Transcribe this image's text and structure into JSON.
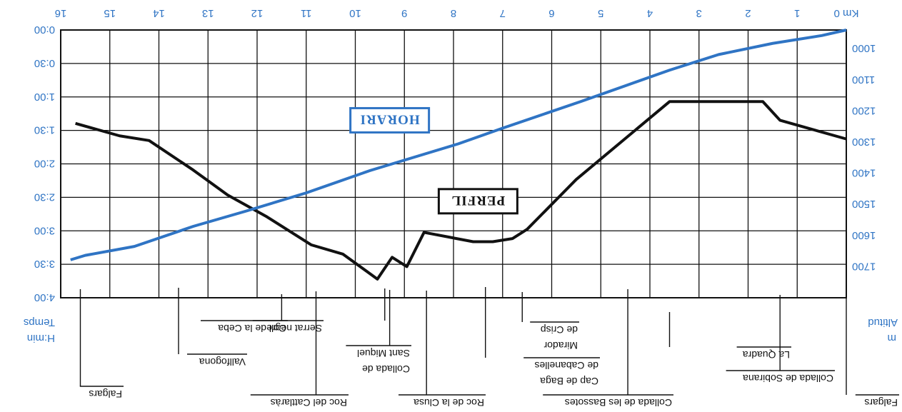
{
  "chart_data": {
    "type": "line",
    "x_label": "Km",
    "x_ticks": [
      0,
      1,
      2,
      3,
      4,
      5,
      6,
      7,
      8,
      9,
      10,
      11,
      12,
      13,
      14,
      15,
      16
    ],
    "xlim": [
      0,
      16
    ],
    "y_left": {
      "label": "Altitud",
      "unit": "m",
      "ticks": [
        1000,
        1100,
        1200,
        1300,
        1400,
        1500,
        1600,
        1700
      ],
      "lim": [
        940,
        1800
      ]
    },
    "y_right": {
      "label": "Temps",
      "unit": "H:min",
      "ticks": [
        "0:00",
        "0:30",
        "1:00",
        "1:30",
        "2:00",
        "2:30",
        "3:00",
        "3:30",
        "4:00"
      ],
      "lim_minutes": [
        0,
        240
      ]
    },
    "grid": true,
    "series": [
      {
        "name": "PERFIL",
        "axis": "altitude",
        "color": "#111111",
        "points": [
          [
            0,
            1290
          ],
          [
            1.35,
            1230
          ],
          [
            1.7,
            1170
          ],
          [
            3.2,
            1170
          ],
          [
            3.6,
            1170
          ],
          [
            5.5,
            1420
          ],
          [
            6.5,
            1580
          ],
          [
            6.8,
            1610
          ],
          [
            7.2,
            1620
          ],
          [
            7.6,
            1620
          ],
          [
            8.6,
            1590
          ],
          [
            8.95,
            1700
          ],
          [
            9.25,
            1670
          ],
          [
            9.55,
            1740
          ],
          [
            10.25,
            1660
          ],
          [
            10.9,
            1630
          ],
          [
            11.8,
            1540
          ],
          [
            12.6,
            1470
          ],
          [
            13.3,
            1390
          ],
          [
            14.2,
            1295
          ],
          [
            14.8,
            1280
          ],
          [
            15.7,
            1240
          ]
        ]
      },
      {
        "name": "HORARI",
        "axis": "time",
        "color": "#2f74c4",
        "points_minutes": [
          [
            0,
            0
          ],
          [
            0.5,
            5
          ],
          [
            1.5,
            12
          ],
          [
            2.6,
            22
          ],
          [
            3.6,
            36
          ],
          [
            4.5,
            50
          ],
          [
            5.4,
            64
          ],
          [
            6.2,
            76
          ],
          [
            7,
            88
          ],
          [
            7.9,
            102
          ],
          [
            8.5,
            110
          ],
          [
            9.7,
            126
          ],
          [
            11,
            146
          ],
          [
            12.2,
            162
          ],
          [
            13.3,
            176
          ],
          [
            14.5,
            194
          ],
          [
            15.5,
            202
          ],
          [
            15.8,
            206
          ]
        ]
      }
    ],
    "waypoints": [
      {
        "km": 0,
        "label_lines": [
          "Falgars"
        ]
      },
      {
        "km": 1.35,
        "label_lines": [
          "Collada de Sobirana"
        ]
      },
      {
        "km": 3.6,
        "label_lines": [
          "La Quadra"
        ]
      },
      {
        "km": 4.45,
        "label_lines": [
          "Collada de les Bassotes"
        ]
      },
      {
        "km": 6.6,
        "label_lines": [
          "Mirador",
          "de Crisp"
        ]
      },
      {
        "km": 7.35,
        "label_lines": [
          "Cap de Baga",
          "de Cabanelles"
        ]
      },
      {
        "km": 8.55,
        "label_lines": [
          "Roc de la Clusa"
        ]
      },
      {
        "km": 9.3,
        "label_lines": [
          "Collada de",
          "Sant Miquel"
        ]
      },
      {
        "km": 9.4,
        "label_lines": [
          "Serrat negre"
        ]
      },
      {
        "km": 10.8,
        "label_lines": [
          "Roc del Cattlaràs"
        ]
      },
      {
        "km": 11.5,
        "label_lines": [
          "Coll de la Ceba"
        ]
      },
      {
        "km": 13.6,
        "label_lines": [
          "Vallfogona"
        ]
      },
      {
        "km": 15.6,
        "label_lines": [
          "Falgars"
        ]
      }
    ],
    "legend": [
      {
        "name": "PERFIL",
        "km": 7.5,
        "alt": 1490
      },
      {
        "name": "HORARI",
        "km": 9.3,
        "alt": 1230
      }
    ]
  }
}
